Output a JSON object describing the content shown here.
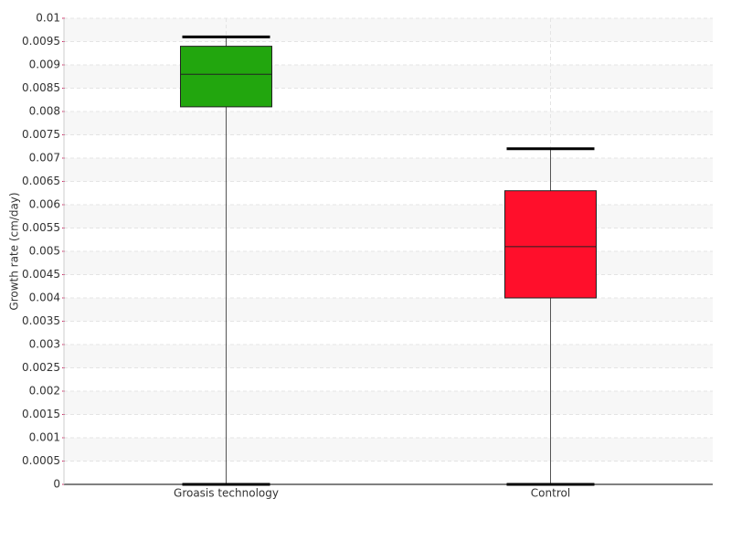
{
  "chart_data": {
    "type": "box",
    "y_label": "Growth rate (cm/day)",
    "categories": [
      "Groasis technology",
      "Control"
    ],
    "boxes": [
      {
        "min": 0,
        "q1": 0.0081,
        "median": 0.0088,
        "q3": 0.0094,
        "max": 0.0096,
        "color": "#22a60e"
      },
      {
        "min": 0,
        "q1": 0.004,
        "median": 0.0051,
        "q3": 0.0063,
        "max": 0.0072,
        "color": "#ff0f2b"
      }
    ],
    "ylim": [
      0,
      0.01
    ],
    "yticks": [
      0,
      0.0005,
      0.001,
      0.0015,
      0.002,
      0.0025,
      0.003,
      0.0035,
      0.004,
      0.0045,
      0.005,
      0.0055,
      0.006,
      0.0065,
      0.007,
      0.0075,
      0.008,
      0.0085,
      0.009,
      0.0095,
      0.01
    ],
    "grid": true
  }
}
